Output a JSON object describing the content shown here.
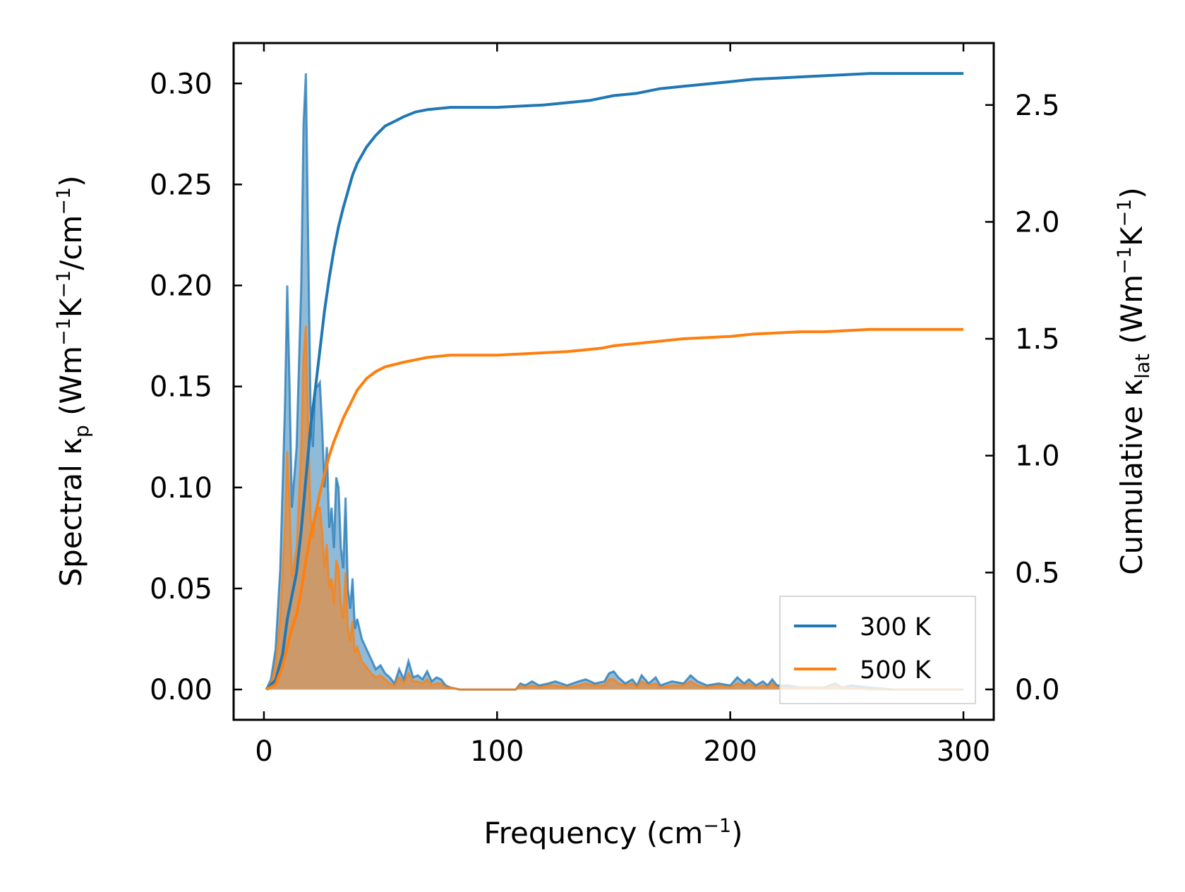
{
  "chart_data": {
    "type": "line",
    "xlabel": "Frequency (cm",
    "xlabel_sup": "−1",
    "xlabel_end": ")",
    "ylabel_left": {
      "main": "Spectral κ",
      "sub": "p",
      "unit_open": " (Wm",
      "sup1": "−1",
      "k": "K",
      "sup2": "−1",
      "mid": "/cm",
      "sup3": "−1",
      "close": ")"
    },
    "ylabel_right": {
      "main": "Cumulative κ",
      "sub": "lat",
      "unit_open": " (Wm",
      "sup1": "−1",
      "k": "K",
      "sup2": "−1",
      "close": ")"
    },
    "xlim": [
      -13,
      313
    ],
    "ylim_left": [
      -0.015,
      0.32
    ],
    "ylim_right": [
      -0.13,
      2.765
    ],
    "xticks": [
      "0",
      "100",
      "200",
      "300"
    ],
    "xtick_values": [
      0,
      100,
      200,
      300
    ],
    "yticks_left": [
      "0.00",
      "0.05",
      "0.10",
      "0.15",
      "0.20",
      "0.25",
      "0.30"
    ],
    "ytick_values_left": [
      0,
      0.05,
      0.1,
      0.15,
      0.2,
      0.25,
      0.3
    ],
    "yticks_right": [
      "0.0",
      "0.5",
      "1.0",
      "1.5",
      "2.0",
      "2.5"
    ],
    "ytick_values_right": [
      0,
      0.5,
      1.0,
      1.5,
      2.0,
      2.5
    ],
    "colors": {
      "t300": "#1f77b4",
      "t500": "#ff7f0e"
    },
    "legend": [
      "300 K",
      "500 K"
    ],
    "legend_position": "lower-right",
    "series": [
      {
        "name": "300 K spectral",
        "axis": "left",
        "x": [
          1,
          3,
          5,
          7,
          9,
          10,
          11,
          12,
          14,
          16,
          17,
          18,
          19,
          20,
          21,
          22,
          23,
          24,
          25,
          26,
          27,
          28,
          29,
          30,
          31,
          32,
          33,
          34,
          35,
          36,
          37,
          38,
          39,
          40,
          42,
          44,
          46,
          48,
          50,
          52,
          54,
          56,
          58,
          60,
          62,
          64,
          66,
          68,
          70,
          72,
          74,
          76,
          78,
          80,
          84,
          90,
          100,
          108,
          110,
          112,
          115,
          118,
          122,
          125,
          130,
          135,
          138,
          142,
          146,
          148,
          150,
          152,
          155,
          158,
          160,
          162,
          165,
          168,
          170,
          175,
          180,
          183,
          186,
          190,
          195,
          200,
          203,
          206,
          208,
          211,
          214,
          216,
          218,
          220,
          225,
          230,
          240,
          245,
          248,
          252,
          260,
          270,
          280,
          290,
          300
        ],
        "values": [
          0,
          0.005,
          0.02,
          0.06,
          0.14,
          0.2,
          0.15,
          0.09,
          0.12,
          0.2,
          0.28,
          0.305,
          0.22,
          0.14,
          0.12,
          0.15,
          0.15,
          0.152,
          0.13,
          0.1,
          0.12,
          0.08,
          0.09,
          0.07,
          0.105,
          0.1,
          0.07,
          0.06,
          0.095,
          0.05,
          0.04,
          0.055,
          0.03,
          0.035,
          0.025,
          0.02,
          0.015,
          0.01,
          0.012,
          0.008,
          0.006,
          0.003,
          0.01,
          0.005,
          0.014,
          0.006,
          0.007,
          0.005,
          0.009,
          0.004,
          0.006,
          0.005,
          0.002,
          0.001,
          0,
          0,
          0,
          0,
          0.003,
          0.002,
          0.004,
          0.002,
          0.003,
          0.004,
          0.002,
          0.004,
          0.005,
          0.003,
          0.004,
          0.008,
          0.009,
          0.006,
          0.003,
          0.005,
          0.002,
          0.007,
          0.003,
          0.006,
          0.002,
          0.004,
          0.003,
          0.007,
          0.004,
          0.002,
          0.003,
          0.002,
          0.006,
          0.003,
          0.005,
          0.002,
          0.004,
          0.002,
          0.005,
          0.002,
          0.002,
          0.001,
          0.001,
          0.003,
          0.001,
          0.002,
          0.001,
          0,
          0,
          0,
          0
        ]
      },
      {
        "name": "500 K spectral",
        "axis": "left",
        "x": [
          1,
          3,
          5,
          7,
          9,
          10,
          11,
          12,
          14,
          16,
          17,
          18,
          19,
          20,
          21,
          22,
          23,
          24,
          25,
          26,
          27,
          28,
          29,
          30,
          31,
          32,
          33,
          34,
          35,
          36,
          37,
          38,
          39,
          40,
          42,
          44,
          46,
          48,
          50,
          52,
          54,
          56,
          58,
          60,
          62,
          64,
          66,
          68,
          70,
          72,
          74,
          76,
          78,
          80,
          84,
          90,
          100,
          108,
          110,
          112,
          115,
          118,
          122,
          125,
          130,
          135,
          138,
          142,
          146,
          148,
          150,
          152,
          155,
          158,
          160,
          162,
          165,
          168,
          170,
          175,
          180,
          183,
          186,
          190,
          195,
          200,
          203,
          206,
          208,
          211,
          214,
          216,
          218,
          220,
          225,
          230,
          240,
          245,
          248,
          252,
          260,
          270,
          280,
          290,
          300
        ],
        "values": [
          0,
          0.003,
          0.012,
          0.035,
          0.08,
          0.118,
          0.09,
          0.055,
          0.07,
          0.118,
          0.165,
          0.18,
          0.13,
          0.085,
          0.075,
          0.088,
          0.09,
          0.09,
          0.078,
          0.06,
          0.072,
          0.05,
          0.055,
          0.042,
          0.064,
          0.06,
          0.042,
          0.035,
          0.058,
          0.03,
          0.024,
          0.034,
          0.018,
          0.021,
          0.014,
          0.011,
          0.008,
          0.006,
          0.007,
          0.005,
          0.003,
          0.002,
          0.006,
          0.003,
          0.008,
          0.004,
          0.004,
          0.003,
          0.005,
          0.002,
          0.003,
          0.003,
          0.001,
          0.001,
          0,
          0,
          0,
          0,
          0.002,
          0.001,
          0.002,
          0.001,
          0.002,
          0.002,
          0.001,
          0.002,
          0.003,
          0.002,
          0.002,
          0.005,
          0.005,
          0.003,
          0.002,
          0.003,
          0.001,
          0.004,
          0.002,
          0.003,
          0.001,
          0.002,
          0.002,
          0.004,
          0.002,
          0.001,
          0.002,
          0.001,
          0.003,
          0.002,
          0.003,
          0.001,
          0.002,
          0.001,
          0.003,
          0.001,
          0.001,
          0.001,
          0.001,
          0.002,
          0.001,
          0.001,
          0,
          0,
          0,
          0,
          0
        ]
      },
      {
        "name": "300 K",
        "axis": "right",
        "x": [
          1,
          5,
          8,
          10,
          12,
          14,
          16,
          18,
          20,
          22,
          24,
          26,
          28,
          30,
          32,
          34,
          36,
          38,
          40,
          44,
          48,
          52,
          56,
          60,
          65,
          70,
          75,
          80,
          85,
          90,
          100,
          110,
          120,
          130,
          140,
          145,
          150,
          155,
          160,
          170,
          180,
          190,
          200,
          210,
          220,
          230,
          240,
          250,
          260,
          270,
          280,
          290,
          300
        ],
        "values": [
          0,
          0.04,
          0.15,
          0.3,
          0.4,
          0.5,
          0.68,
          0.9,
          1.12,
          1.28,
          1.45,
          1.62,
          1.76,
          1.88,
          1.98,
          2.06,
          2.13,
          2.2,
          2.25,
          2.32,
          2.37,
          2.41,
          2.43,
          2.45,
          2.47,
          2.48,
          2.485,
          2.49,
          2.49,
          2.49,
          2.49,
          2.495,
          2.5,
          2.51,
          2.52,
          2.53,
          2.54,
          2.545,
          2.55,
          2.57,
          2.58,
          2.59,
          2.6,
          2.61,
          2.615,
          2.62,
          2.625,
          2.63,
          2.635,
          2.635,
          2.635,
          2.635,
          2.635
        ]
      },
      {
        "name": "500 K",
        "axis": "right",
        "x": [
          1,
          5,
          8,
          10,
          12,
          14,
          16,
          18,
          20,
          22,
          24,
          26,
          28,
          30,
          32,
          34,
          36,
          38,
          40,
          44,
          48,
          52,
          56,
          60,
          65,
          70,
          75,
          80,
          85,
          90,
          100,
          110,
          120,
          130,
          140,
          145,
          150,
          155,
          160,
          170,
          180,
          190,
          200,
          210,
          220,
          230,
          240,
          250,
          260,
          270,
          280,
          290,
          300
        ],
        "values": [
          0,
          0.02,
          0.1,
          0.18,
          0.26,
          0.32,
          0.42,
          0.55,
          0.66,
          0.74,
          0.84,
          0.92,
          1.0,
          1.06,
          1.11,
          1.16,
          1.2,
          1.24,
          1.28,
          1.33,
          1.36,
          1.38,
          1.39,
          1.4,
          1.41,
          1.42,
          1.425,
          1.43,
          1.43,
          1.43,
          1.43,
          1.435,
          1.44,
          1.445,
          1.455,
          1.46,
          1.47,
          1.475,
          1.48,
          1.49,
          1.5,
          1.505,
          1.51,
          1.52,
          1.525,
          1.53,
          1.53,
          1.535,
          1.54,
          1.54,
          1.54,
          1.54,
          1.54
        ]
      }
    ]
  }
}
